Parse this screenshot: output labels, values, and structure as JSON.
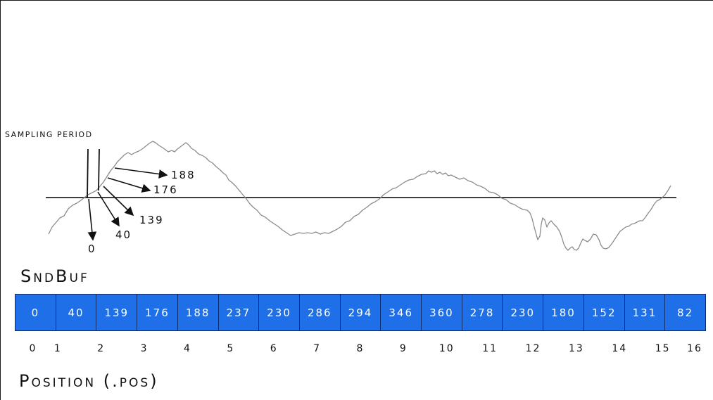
{
  "labels": {
    "sampling_period": "SAMPLING PERIOD",
    "buffer_title": "SndBuf",
    "position_title": "Position (.pos)"
  },
  "annotations": [
    "188",
    "176",
    "139",
    "40",
    "0"
  ],
  "buffer": {
    "values": [
      "0",
      "40",
      "139",
      "176",
      "188",
      "237",
      "230",
      "286",
      "294",
      "346",
      "360",
      "278",
      "230",
      "180",
      "152",
      "131",
      "82"
    ],
    "indices": [
      "0",
      "1",
      "2",
      "3",
      "4",
      "5",
      "6",
      "7",
      "8",
      "9",
      "10",
      "11",
      "12",
      "13",
      "14",
      "15",
      "16"
    ]
  },
  "colors": {
    "cell_fill": "#1e6fe8",
    "cell_border": "#0b2c6e",
    "wave": "#888888",
    "axis": "#222222"
  }
}
